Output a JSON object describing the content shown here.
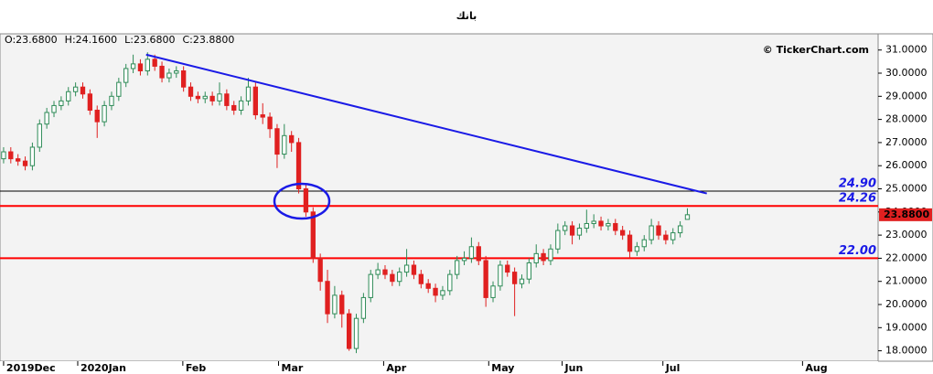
{
  "chart_data": {
    "type": "candlestick",
    "title": "بانك",
    "header_labels": [
      "O:23.6800",
      "H:24.1600",
      "L:23.6800",
      "C:23.8800"
    ],
    "watermark": "© TickerChart.com",
    "up_color": "#2e8b57",
    "down_color": "#e02020",
    "xlim": [
      -0.5,
      121.5
    ],
    "xticks": [
      {
        "value": 0,
        "label": "2019Dec"
      },
      {
        "value": 10.3,
        "label": "2020Jan"
      },
      {
        "value": 24.9,
        "label": "Feb"
      },
      {
        "value": 38.2,
        "label": "Mar"
      },
      {
        "value": 52.8,
        "label": "Apr"
      },
      {
        "value": 67.4,
        "label": "May"
      },
      {
        "value": 77.6,
        "label": "Jun"
      },
      {
        "value": 91.6,
        "label": "Jul"
      },
      {
        "value": 111,
        "label": "Aug"
      }
    ],
    "ylim": [
      17.55,
      31.7
    ],
    "yticks": [
      {
        "value": 18,
        "label": "18.0000"
      },
      {
        "value": 19,
        "label": "19.0000"
      },
      {
        "value": 20,
        "label": "20.0000"
      },
      {
        "value": 21,
        "label": "21.0000"
      },
      {
        "value": 22,
        "label": "22.0000"
      },
      {
        "value": 23,
        "label": "23.0000"
      },
      {
        "value": 24,
        "label": "24.0000"
      },
      {
        "value": 25,
        "label": "25.0000"
      },
      {
        "value": 26,
        "label": "26.0000"
      },
      {
        "value": 27,
        "label": "27.0000"
      },
      {
        "value": 28,
        "label": "28.0000"
      },
      {
        "value": 29,
        "label": "29.0000"
      },
      {
        "value": 30,
        "label": "30.0000"
      },
      {
        "value": 31,
        "label": "31.0000"
      }
    ],
    "open": [
      26.3,
      26.6,
      26.3,
      26.2,
      26.0,
      26.8,
      27.8,
      28.3,
      28.6,
      28.8,
      29.2,
      29.4,
      29.1,
      28.4,
      27.9,
      28.6,
      29.0,
      29.6,
      30.2,
      30.4,
      30.1,
      30.6,
      30.3,
      29.8,
      30.0,
      30.1,
      29.4,
      29.0,
      28.9,
      29.0,
      28.8,
      29.1,
      28.6,
      28.4,
      28.8,
      29.4,
      28.2,
      28.1,
      27.6,
      26.5,
      27.3,
      27.0,
      25.0,
      24.0,
      22.0,
      21.0,
      19.6,
      20.4,
      19.6,
      18.1,
      19.4,
      20.3,
      21.3,
      21.5,
      21.3,
      21.0,
      21.4,
      21.7,
      21.3,
      20.9,
      20.7,
      20.4,
      20.6,
      21.3,
      21.9,
      22.0,
      22.5,
      21.9,
      20.3,
      20.8,
      21.7,
      21.4,
      20.9,
      21.1,
      21.8,
      22.2,
      21.9,
      22.4,
      23.2,
      23.4,
      23.0,
      23.3,
      23.5,
      23.6,
      23.4,
      23.5,
      23.2,
      23.0,
      22.3,
      22.5,
      22.8,
      23.4,
      23.0,
      22.8,
      23.1,
      23.68
    ],
    "high": [
      26.8,
      26.8,
      26.5,
      26.4,
      27.0,
      28.0,
      28.5,
      28.8,
      29.0,
      29.4,
      29.6,
      29.6,
      29.3,
      28.6,
      28.8,
      29.2,
      29.8,
      30.4,
      30.8,
      30.6,
      30.9,
      30.8,
      30.5,
      30.2,
      30.3,
      30.3,
      29.6,
      29.2,
      29.2,
      29.2,
      29.6,
      29.3,
      28.8,
      29.0,
      29.8,
      29.6,
      28.7,
      28.3,
      27.8,
      27.8,
      27.5,
      27.2,
      25.2,
      24.2,
      22.2,
      21.5,
      20.8,
      20.6,
      19.8,
      19.6,
      20.5,
      21.5,
      21.8,
      21.7,
      21.5,
      21.6,
      22.4,
      21.9,
      21.5,
      21.1,
      20.9,
      20.8,
      21.5,
      22.1,
      22.3,
      22.9,
      22.7,
      22.1,
      21.0,
      21.9,
      21.9,
      21.6,
      21.3,
      22.0,
      22.6,
      22.4,
      22.6,
      23.5,
      23.6,
      23.6,
      23.5,
      24.1,
      23.9,
      23.8,
      23.7,
      23.7,
      23.4,
      23.2,
      22.7,
      23.0,
      23.7,
      23.6,
      23.2,
      23.3,
      23.6,
      24.16
    ],
    "low": [
      26.1,
      26.1,
      26.0,
      25.8,
      25.8,
      26.6,
      27.6,
      28.1,
      28.4,
      28.6,
      29.0,
      28.9,
      28.2,
      27.2,
      27.7,
      28.4,
      28.8,
      29.4,
      30.0,
      29.9,
      29.9,
      30.1,
      29.6,
      29.6,
      29.8,
      29.2,
      28.8,
      28.7,
      28.7,
      28.6,
      28.6,
      28.4,
      28.2,
      28.2,
      28.6,
      28.0,
      27.8,
      27.2,
      25.9,
      26.3,
      26.6,
      24.8,
      23.8,
      21.8,
      20.6,
      19.2,
      19.4,
      19.0,
      18.0,
      17.9,
      19.2,
      20.1,
      21.1,
      21.1,
      20.8,
      20.8,
      21.2,
      21.1,
      20.7,
      20.5,
      20.1,
      20.2,
      20.4,
      21.1,
      21.7,
      21.8,
      21.7,
      19.9,
      20.1,
      20.6,
      21.2,
      19.5,
      20.7,
      20.9,
      21.6,
      21.7,
      21.7,
      22.2,
      23.0,
      22.6,
      22.8,
      23.1,
      23.3,
      23.2,
      23.2,
      23.0,
      22.8,
      22.0,
      22.1,
      22.3,
      22.6,
      22.8,
      22.6,
      22.6,
      22.9,
      23.68
    ],
    "close": [
      26.6,
      26.3,
      26.2,
      26.0,
      26.8,
      27.8,
      28.3,
      28.6,
      28.8,
      29.2,
      29.4,
      29.1,
      28.4,
      27.9,
      28.6,
      29.0,
      29.6,
      30.2,
      30.4,
      30.1,
      30.6,
      30.3,
      29.8,
      30.0,
      30.1,
      29.4,
      29.0,
      28.9,
      29.0,
      28.8,
      29.1,
      28.6,
      28.4,
      28.8,
      29.4,
      28.2,
      28.1,
      27.6,
      26.5,
      27.3,
      27.0,
      25.0,
      24.0,
      22.0,
      21.0,
      19.6,
      20.4,
      19.6,
      18.1,
      19.4,
      20.3,
      21.3,
      21.5,
      21.3,
      21.0,
      21.4,
      21.7,
      21.3,
      20.9,
      20.7,
      20.4,
      20.6,
      21.3,
      21.9,
      22.0,
      22.5,
      21.9,
      20.3,
      20.8,
      21.7,
      21.4,
      20.9,
      21.1,
      21.8,
      22.2,
      21.9,
      22.4,
      23.2,
      23.4,
      23.0,
      23.3,
      23.5,
      23.6,
      23.4,
      23.5,
      23.2,
      23.0,
      22.3,
      22.5,
      22.8,
      23.4,
      23.0,
      22.8,
      23.1,
      23.4,
      23.88
    ],
    "levels": [
      {
        "value": 24.9,
        "label": "24.90",
        "color": "#000000"
      },
      {
        "value": 24.26,
        "label": "24.26",
        "color": "#ff0000"
      },
      {
        "value": 22,
        "label": "22.00",
        "color": "#ff0000"
      }
    ],
    "last_price": {
      "value": 23.88,
      "label": "23.8800"
    },
    "trendline": {
      "x": [
        19.8,
        97.7
      ],
      "y": [
        30.8,
        24.8
      ],
      "color": "#1a1ae6"
    }
  }
}
